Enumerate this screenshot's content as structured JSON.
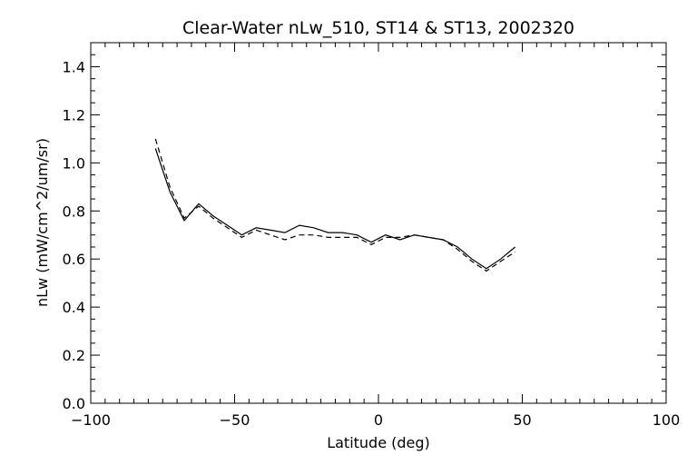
{
  "chart_data": {
    "type": "line",
    "title": "Clear-Water nLw_510, ST14 & ST13, 2002320",
    "xlabel": "Latitude (deg)",
    "ylabel": "nLw (mW/cm^2/um/sr)",
    "xlim": [
      -100,
      100
    ],
    "ylim": [
      0.0,
      1.5
    ],
    "x_ticks": [
      "−100",
      "−50",
      "0",
      "50",
      "100"
    ],
    "x_tick_values": [
      -100,
      -50,
      0,
      50,
      100
    ],
    "y_ticks": [
      "0.0",
      "0.2",
      "0.4",
      "0.6",
      "0.8",
      "1.0",
      "1.2",
      "1.4"
    ],
    "y_tick_values": [
      0.0,
      0.2,
      0.4,
      0.6,
      0.8,
      1.0,
      1.2,
      1.4
    ],
    "grid": false,
    "series": [
      {
        "style": "solid",
        "color": "#000000",
        "x": [
          -77.5,
          -72.5,
          -67.5,
          -62.5,
          -57.5,
          -52.5,
          -47.5,
          -42.5,
          -37.5,
          -32.5,
          -27.5,
          -22.5,
          -17.5,
          -12.5,
          -7.5,
          -2.5,
          2.5,
          7.5,
          12.5,
          17.5,
          22.5,
          27.5,
          32.5,
          37.5,
          42.5,
          47.5
        ],
        "y": [
          1.06,
          0.88,
          0.76,
          0.83,
          0.78,
          0.74,
          0.7,
          0.73,
          0.72,
          0.71,
          0.74,
          0.73,
          0.71,
          0.71,
          0.7,
          0.67,
          0.7,
          0.68,
          0.7,
          0.69,
          0.68,
          0.65,
          0.6,
          0.56,
          0.6,
          0.65
        ]
      },
      {
        "style": "dashed",
        "color": "#000000",
        "x": [
          -77.5,
          -72.5,
          -67.5,
          -62.5,
          -57.5,
          -52.5,
          -47.5,
          -42.5,
          -37.5,
          -32.5,
          -27.5,
          -22.5,
          -17.5,
          -12.5,
          -7.5,
          -2.5,
          2.5,
          7.5,
          12.5,
          17.5,
          22.5,
          27.5,
          32.5,
          37.5,
          42.5,
          47.5
        ],
        "y": [
          1.1,
          0.9,
          0.77,
          0.82,
          0.77,
          0.73,
          0.69,
          0.72,
          0.7,
          0.68,
          0.7,
          0.7,
          0.69,
          0.69,
          0.69,
          0.66,
          0.69,
          0.69,
          0.7,
          0.69,
          0.68,
          0.64,
          0.59,
          0.55,
          0.59,
          0.63
        ]
      }
    ]
  }
}
